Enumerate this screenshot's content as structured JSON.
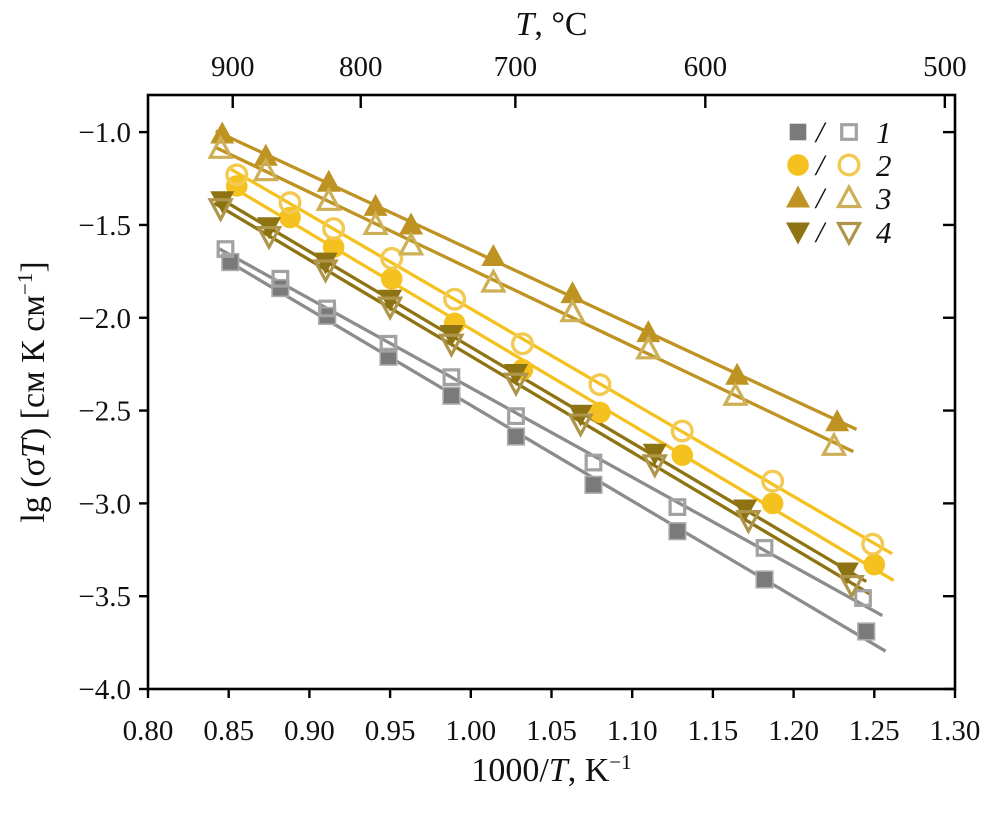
{
  "figure": {
    "background": "#ffffff",
    "axis_color": "#000000",
    "text_color": "#111111"
  },
  "top_axis": {
    "title_parts": [
      {
        "t": "T",
        "i": true
      },
      {
        "t": ", °C",
        "i": false
      }
    ],
    "ticks": [
      {
        "label": "900",
        "x": 0.8525
      },
      {
        "label": "800",
        "x": 0.9318
      },
      {
        "label": "700",
        "x": 1.0276
      },
      {
        "label": "600",
        "x": 1.1453
      },
      {
        "label": "500",
        "x": 1.2937
      }
    ]
  },
  "bottom_axis": {
    "title_parts": [
      {
        "t": "1000/",
        "i": false
      },
      {
        "t": "T",
        "i": true
      },
      {
        "t": ", K",
        "i": false
      },
      {
        "t": "−1",
        "sup": true
      }
    ],
    "ticks": [
      {
        "label": "0.80",
        "v": 0.8
      },
      {
        "label": "0.85",
        "v": 0.85
      },
      {
        "label": "0.90",
        "v": 0.9
      },
      {
        "label": "0.95",
        "v": 0.95
      },
      {
        "label": "1.00",
        "v": 1.0
      },
      {
        "label": "1.05",
        "v": 1.05
      },
      {
        "label": "1.10",
        "v": 1.1
      },
      {
        "label": "1.15",
        "v": 1.15
      },
      {
        "label": "1.20",
        "v": 1.2
      },
      {
        "label": "1.25",
        "v": 1.25
      },
      {
        "label": "1.30",
        "v": 1.3
      }
    ]
  },
  "left_axis": {
    "title_parts": [
      {
        "t": "lg (σ",
        "i": false
      },
      {
        "t": "T",
        "i": true
      },
      {
        "t": ") [см К см",
        "i": false
      },
      {
        "t": "−1",
        "sup": true
      },
      {
        "t": "]",
        "i": false
      }
    ],
    "ticks": [
      {
        "label": "−1.0",
        "v": -1.0
      },
      {
        "label": "−1.5",
        "v": -1.5
      },
      {
        "label": "−2.0",
        "v": -2.0
      },
      {
        "label": "−2.5",
        "v": -2.5
      },
      {
        "label": "−3.0",
        "v": -3.0
      },
      {
        "label": "−3.5",
        "v": -3.5
      },
      {
        "label": "−4.0",
        "v": -4.0
      }
    ]
  },
  "legend": {
    "position": "top-right",
    "separator": "/",
    "rows": [
      {
        "label": "1",
        "marker": "square",
        "filled_color": "#7A7A7A",
        "open_color": "#A2A2A2"
      },
      {
        "label": "2",
        "marker": "circle",
        "filled_color": "#F5C11E",
        "open_color": "#F2CA52"
      },
      {
        "label": "3",
        "marker": "triangle-up",
        "filled_color": "#BE9322",
        "open_color": "#CDAF55"
      },
      {
        "label": "4",
        "marker": "triangle-down",
        "filled_color": "#8E7313",
        "open_color": "#AE9549"
      }
    ]
  },
  "chart_data": {
    "type": "scatter",
    "grid": false,
    "xlim": [
      0.8,
      1.3
    ],
    "ylim": [
      -4.0,
      -0.8
    ],
    "xlabel": "1000/T, K−1",
    "ylabel": "lg (σT) [см К см−1]",
    "top_xlabel": "T, °C",
    "series": [
      {
        "name": "1 filled",
        "legend": "1",
        "marker": "square",
        "variant": "filled",
        "color": "#7A7A7A",
        "edge_color": "#ABABAB",
        "line_color": "#8C8C8C",
        "x": [
          0.851,
          0.882,
          0.911,
          0.949,
          0.988,
          1.028,
          1.076,
          1.128,
          1.182,
          1.245
        ],
        "y": [
          -1.7,
          -1.84,
          -1.99,
          -2.21,
          -2.42,
          -2.64,
          -2.9,
          -3.15,
          -3.41,
          -3.69
        ]
      },
      {
        "name": "1 open",
        "legend": "1",
        "marker": "square",
        "variant": "open",
        "color": "#A2A2A2",
        "line_color": "#8C8C8C",
        "x": [
          0.848,
          0.882,
          0.911,
          0.949,
          0.988,
          1.028,
          1.076,
          1.128,
          1.182,
          1.243
        ],
        "y": [
          -1.63,
          -1.79,
          -1.95,
          -2.14,
          -2.32,
          -2.53,
          -2.78,
          -3.02,
          -3.24,
          -3.51
        ]
      },
      {
        "name": "2 filled",
        "legend": "2",
        "marker": "circle",
        "variant": "filled",
        "color": "#F5C11E",
        "line_color": "#F5C11E",
        "x": [
          0.855,
          0.888,
          0.915,
          0.951,
          0.99,
          1.032,
          1.08,
          1.131,
          1.187,
          1.25
        ],
        "y": [
          -1.29,
          -1.46,
          -1.62,
          -1.79,
          -2.03,
          -2.28,
          -2.51,
          -2.74,
          -3.0,
          -3.33
        ]
      },
      {
        "name": "2 open",
        "legend": "2",
        "marker": "circle",
        "variant": "open",
        "color": "#F2CA52",
        "line_color": "#F5C11E",
        "x": [
          0.855,
          0.888,
          0.915,
          0.951,
          0.99,
          1.032,
          1.08,
          1.131,
          1.187,
          1.249
        ],
        "y": [
          -1.23,
          -1.38,
          -1.52,
          -1.68,
          -1.9,
          -2.14,
          -2.36,
          -2.61,
          -2.88,
          -3.22
        ]
      },
      {
        "name": "3 filled",
        "legend": "3",
        "marker": "triangle-up",
        "variant": "filled",
        "color": "#BE9322",
        "line_color": "#BE9322",
        "x": [
          0.846,
          0.873,
          0.912,
          0.941,
          0.963,
          1.014,
          1.063,
          1.11,
          1.165,
          1.227
        ],
        "y": [
          -1.01,
          -1.13,
          -1.27,
          -1.4,
          -1.5,
          -1.67,
          -1.87,
          -2.08,
          -2.31,
          -2.56
        ]
      },
      {
        "name": "3 open",
        "legend": "3",
        "marker": "triangle-up",
        "variant": "open",
        "color": "#CDAF55",
        "line_color": "#BE9322",
        "x": [
          0.845,
          0.873,
          0.912,
          0.941,
          0.963,
          1.014,
          1.063,
          1.11,
          1.164,
          1.225
        ],
        "y": [
          -1.09,
          -1.21,
          -1.37,
          -1.5,
          -1.61,
          -1.81,
          -1.97,
          -2.17,
          -2.42,
          -2.69
        ]
      },
      {
        "name": "4 filled",
        "legend": "4",
        "marker": "triangle-down",
        "variant": "filled",
        "color": "#8E7313",
        "line_color": "#8E7313",
        "x": [
          0.846,
          0.875,
          0.91,
          0.95,
          0.988,
          1.028,
          1.068,
          1.114,
          1.17,
          1.233
        ],
        "y": [
          -1.37,
          -1.51,
          -1.7,
          -1.9,
          -2.09,
          -2.3,
          -2.52,
          -2.73,
          -3.03,
          -3.37
        ]
      },
      {
        "name": "4 open",
        "legend": "4",
        "marker": "triangle-down",
        "variant": "open",
        "color": "#AE9549",
        "line_color": "#8E7313",
        "x": [
          0.845,
          0.875,
          0.91,
          0.95,
          0.988,
          1.028,
          1.068,
          1.114,
          1.172,
          1.236
        ],
        "y": [
          -1.41,
          -1.56,
          -1.74,
          -1.94,
          -2.14,
          -2.35,
          -2.57,
          -2.79,
          -3.09,
          -3.44
        ]
      }
    ]
  }
}
